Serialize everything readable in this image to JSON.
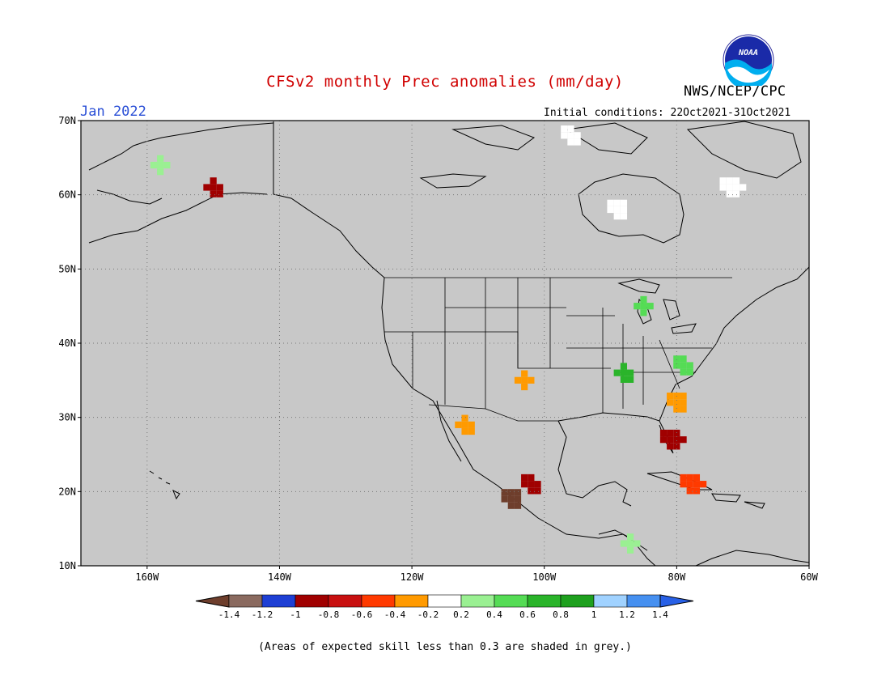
{
  "header": {
    "title": "CFSv2 monthly Prec anomalies (mm/day)",
    "month": "Jan 2022",
    "initial_conditions": "Initial conditions: 22Oct2021-31Oct2021",
    "agency": "NWS/NCEP/CPC",
    "logo_text": "NOAA"
  },
  "map": {
    "lat_labels": [
      "70N",
      "60N",
      "50N",
      "40N",
      "30N",
      "20N",
      "10N"
    ],
    "lon_labels": [
      "160W",
      "140W",
      "120W",
      "100W",
      "80W",
      "60W"
    ],
    "lat_values": [
      70,
      60,
      50,
      40,
      30,
      20,
      10
    ],
    "lon_values": [
      -160,
      -140,
      -120,
      -100,
      -80,
      -60
    ],
    "background_color": "#c8c8c8",
    "anomaly_patches": [
      {
        "region": "Southwest Alaska",
        "lat": 64,
        "lon": -158,
        "value": 0.3
      },
      {
        "region": "South-central Alaska",
        "lat": 61,
        "lon": -150,
        "value": -0.9
      },
      {
        "region": "Northern Canada",
        "lat": 68,
        "lon": -96,
        "value": 0.0
      },
      {
        "region": "Hudson Bay",
        "lat": 58,
        "lon": -89,
        "value": 0.0
      },
      {
        "region": "Labrador",
        "lat": 61,
        "lon": -72,
        "value": 0.0
      },
      {
        "region": "Upper Great Lakes",
        "lat": 45,
        "lon": -85,
        "value": 0.5
      },
      {
        "region": "Ohio/Tennessee Valley",
        "lat": 36,
        "lon": -88,
        "value": 0.7
      },
      {
        "region": "Mid-Atlantic",
        "lat": 37,
        "lon": -79,
        "value": 0.5
      },
      {
        "region": "Southeast coast",
        "lat": 32,
        "lon": -80,
        "value": -0.3
      },
      {
        "region": "Florida",
        "lat": 27,
        "lon": -81,
        "value": -0.8
      },
      {
        "region": "Southern Plains",
        "lat": 35,
        "lon": -103,
        "value": -0.3
      },
      {
        "region": "Baja California",
        "lat": 29,
        "lon": -112,
        "value": -0.3
      },
      {
        "region": "Central Mexico",
        "lat": 21,
        "lon": -102,
        "value": -0.9
      },
      {
        "region": "Southwest Mexico coast",
        "lat": 19,
        "lon": -105,
        "value": -1.4
      },
      {
        "region": "Cuba",
        "lat": 21,
        "lon": -78,
        "value": -0.5
      },
      {
        "region": "Central America",
        "lat": 13,
        "lon": -87,
        "value": 0.3
      }
    ]
  },
  "colorbar": {
    "labels": [
      "-1.4",
      "-1.2",
      "-1",
      "-0.8",
      "-0.6",
      "-0.4",
      "-0.2",
      "0.2",
      "0.4",
      "0.6",
      "0.8",
      "1",
      "1.2",
      "1.4"
    ],
    "colors": [
      "#6e3e2c",
      "#8a6a5f",
      "#1e3fd4",
      "#a00000",
      "#c81010",
      "#ff3a00",
      "#ff9a00",
      "#ffffff",
      "#9af092",
      "#55dc55",
      "#2ab42a",
      "#1ea01e",
      "#a0d2ff",
      "#4690f0",
      "#2860e6"
    ]
  },
  "footnote": "(Areas of expected skill less than 0.3 are shaded in grey.)"
}
